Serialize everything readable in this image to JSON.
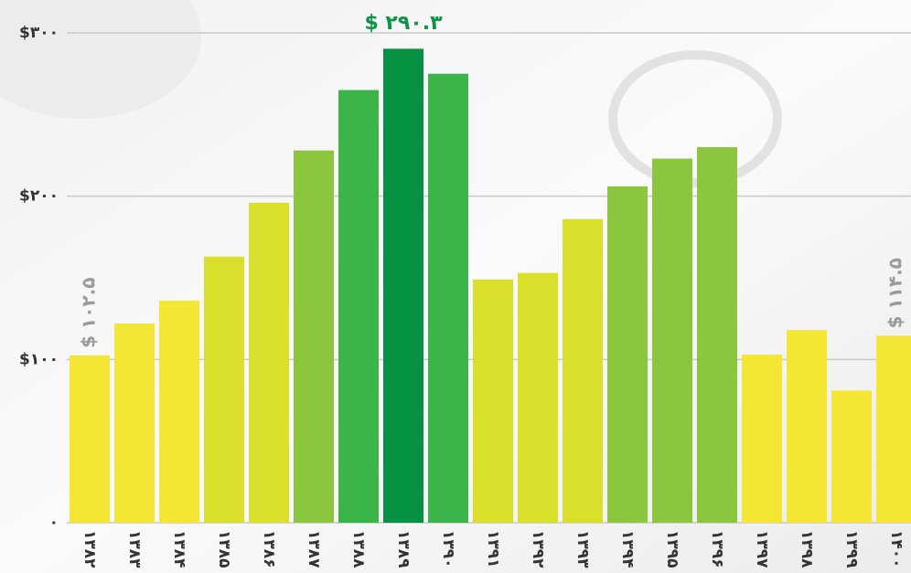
{
  "chart_data": {
    "type": "bar",
    "categories": [
      "۱۳۸۲",
      "۱۳۸۳",
      "۱۳۸۴",
      "۱۳۸۵",
      "۱۳۸۶",
      "۱۳۸۷",
      "۱۳۸۸",
      "۱۳۸۹",
      "۱۳۹۰",
      "۱۳۹۱",
      "۱۳۹۲",
      "۱۳۹۳",
      "۱۳۹۴",
      "۱۳۹۵",
      "۱۳۹۶",
      "۱۳۹۷",
      "۱۳۹۸",
      "۱۳۹۹",
      "۱۴۰۰"
    ],
    "values": [
      102.5,
      122,
      136,
      163,
      196,
      228,
      265,
      290.3,
      275,
      149,
      153,
      186,
      206,
      223,
      230,
      103,
      118,
      81,
      114.5
    ],
    "value_labels": [
      "$ ۱۰۲.۵",
      null,
      null,
      null,
      null,
      null,
      null,
      "$ ۲۹۰.۳",
      null,
      null,
      null,
      null,
      null,
      null,
      null,
      null,
      null,
      null,
      "$ ۱۱۴.۵"
    ],
    "colors": [
      "#f3e635",
      "#f3e635",
      "#f3e635",
      "#d9df2b",
      "#d9df2b",
      "#8cc63f",
      "#3bb54a",
      "#079143",
      "#3bb54a",
      "#d9df2b",
      "#d9df2b",
      "#d9df2b",
      "#8cc63f",
      "#8cc63f",
      "#8cc63f",
      "#f3e635",
      "#f3e635",
      "#f3e635",
      "#f3e635"
    ],
    "ylim": [
      0,
      300
    ],
    "yticks": [
      {
        "value": 0,
        "label": "۰"
      },
      {
        "value": 100,
        "label": "$۱۰۰"
      },
      {
        "value": 200,
        "label": "$۲۰۰"
      },
      {
        "value": 300,
        "label": "$۳۰۰"
      }
    ],
    "grid": true
  }
}
